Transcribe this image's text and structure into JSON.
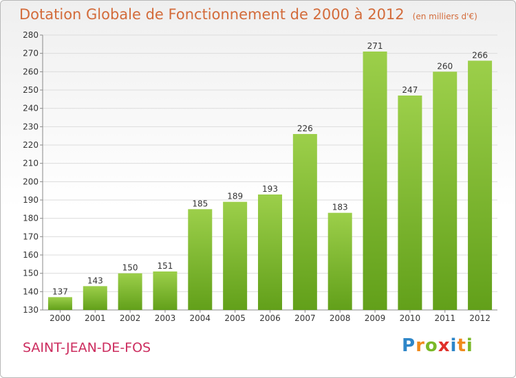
{
  "chart_data": {
    "type": "bar",
    "title": "Dotation Globale de Fonctionnement de 2000 à 2012",
    "subtitle": "(en milliers d'€)",
    "categories": [
      "2000",
      "2001",
      "2002",
      "2003",
      "2004",
      "2005",
      "2006",
      "2007",
      "2008",
      "2009",
      "2010",
      "2011",
      "2012"
    ],
    "values": [
      137,
      143,
      150,
      151,
      185,
      189,
      193,
      226,
      183,
      271,
      247,
      260,
      266
    ],
    "ylim": [
      130,
      280
    ],
    "yticks": [
      130,
      140,
      150,
      160,
      170,
      180,
      190,
      200,
      210,
      220,
      230,
      240,
      250,
      260,
      270,
      280
    ],
    "grid": true,
    "data_labels": true,
    "colors": {
      "bar_light": "#9ccf4a",
      "bar_dark": "#62a01a",
      "title": "#d36b3a",
      "commune": "#cc2c5e"
    }
  },
  "commune": "SAINT-JEAN-DE-FOS",
  "logo": {
    "letters": [
      "P",
      "r",
      "o",
      "x",
      "i",
      "t",
      "i"
    ],
    "colors": [
      "#2e86c8",
      "#f08a1c",
      "#7ab828",
      "#e0302a",
      "#2e86c8",
      "#f08a1c",
      "#7ab828"
    ]
  }
}
